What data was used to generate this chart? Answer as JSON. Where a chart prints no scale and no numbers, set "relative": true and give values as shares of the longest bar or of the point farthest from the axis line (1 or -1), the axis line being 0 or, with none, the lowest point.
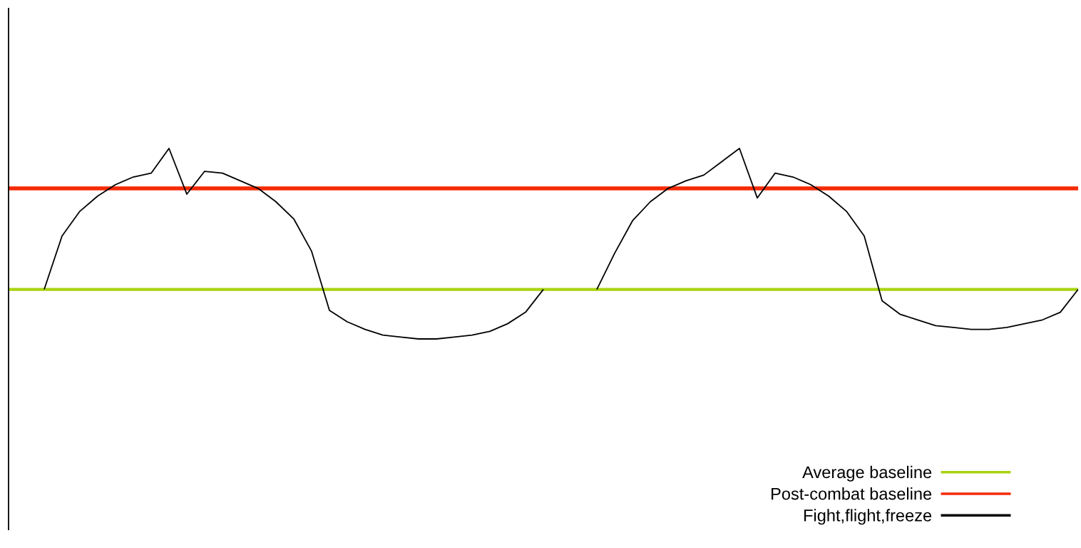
{
  "chart_data": {
    "type": "line",
    "relative": true,
    "legend": "bottom right",
    "categories": [
      null,
      null,
      null,
      null,
      null,
      null,
      null,
      null,
      null,
      null,
      null,
      null,
      null,
      null,
      null,
      null,
      null,
      null,
      null,
      null,
      null,
      null,
      null,
      null,
      null,
      null,
      null,
      null,
      null,
      null,
      null,
      null,
      null,
      null,
      null,
      null,
      null,
      null,
      null,
      null,
      null,
      null,
      null,
      null,
      null,
      null,
      null,
      null,
      null,
      null,
      null,
      null,
      null,
      null,
      null,
      null,
      null,
      null,
      null,
      null,
      null
    ],
    "series": [
      {
        "name": "Average baseline",
        "color": "#a8d412",
        "values": [
          0.26,
          0.26,
          0.26,
          0.26,
          0.26,
          0.26,
          0.26,
          0.26,
          0.26,
          0.26,
          0.26,
          0.26,
          0.26,
          0.26,
          0.26,
          0.26,
          0.26,
          0.26,
          0.26,
          0.26,
          0.26,
          0.26,
          0.26,
          0.26,
          0.26,
          0.26,
          0.26,
          0.26,
          0.26,
          0.26,
          0.26,
          0.26,
          0.26,
          0.26,
          0.26,
          0.26,
          0.26,
          0.26,
          0.26,
          0.26,
          0.26,
          0.26,
          0.26,
          0.26,
          0.26,
          0.26,
          0.26,
          0.26,
          0.26,
          0.26,
          0.26,
          0.26,
          0.26,
          0.26,
          0.26,
          0.26,
          0.26,
          0.26,
          0.26,
          0.26,
          0.26
        ]
      },
      {
        "name": "Post-combat baseline",
        "color": "#f52a05",
        "values": [
          0.79,
          0.79,
          0.79,
          0.79,
          0.79,
          0.79,
          0.79,
          0.79,
          0.79,
          0.79,
          0.79,
          0.79,
          0.79,
          0.79,
          0.79,
          0.79,
          0.79,
          0.79,
          0.79,
          0.79,
          0.79,
          0.79,
          0.79,
          0.79,
          0.79,
          0.79,
          0.79,
          0.79,
          0.79,
          0.79,
          0.79,
          0.79,
          0.79,
          0.79,
          0.79,
          0.79,
          0.79,
          0.79,
          0.79,
          0.79,
          0.79,
          0.79,
          0.79,
          0.79,
          0.79,
          0.79,
          0.79,
          0.79,
          0.79,
          0.79,
          0.79,
          0.79,
          0.79,
          0.79,
          0.79,
          0.79,
          0.79,
          0.79,
          0.79,
          0.79,
          0.79
        ]
      },
      {
        "name": "Fight,flight,freeze",
        "color": "#000000",
        "values": [
          null,
          null,
          0.26,
          0.54,
          0.67,
          0.75,
          0.81,
          0.85,
          0.87,
          1.0,
          0.76,
          0.88,
          0.87,
          0.83,
          0.79,
          0.72,
          0.63,
          0.46,
          0.15,
          0.09,
          0.05,
          0.02,
          0.01,
          0.0,
          0.0,
          0.01,
          0.02,
          0.04,
          0.08,
          0.14,
          0.26,
          null,
          null,
          0.26,
          0.45,
          0.62,
          0.72,
          0.79,
          0.83,
          0.86,
          0.93,
          1.0,
          0.74,
          0.87,
          0.85,
          0.81,
          0.75,
          0.67,
          0.54,
          0.2,
          0.13,
          0.1,
          0.07,
          0.06,
          0.05,
          0.05,
          0.06,
          0.08,
          0.1,
          0.14,
          0.26
        ]
      }
    ]
  }
}
